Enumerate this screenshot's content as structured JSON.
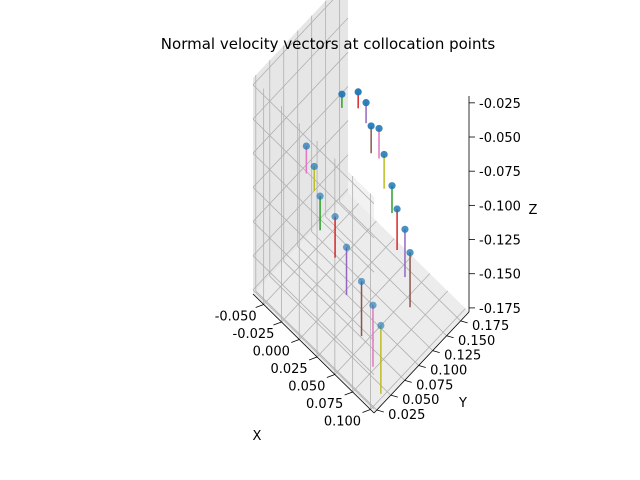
{
  "chart_data": {
    "type": "scatter",
    "title": "Normal velocity vectors at collocation points",
    "xlabel": "X",
    "ylabel": "Y",
    "zlabel": "Z",
    "xlim": [
      -0.065,
      0.105
    ],
    "ylim": [
      0.02,
      0.19
    ],
    "zlim": [
      -0.178,
      -0.02
    ],
    "x_ticks": [
      "-0.050",
      "-0.025",
      "0.000",
      "0.025",
      "0.050",
      "0.075",
      "0.100"
    ],
    "y_ticks": [
      "0.025",
      "0.050",
      "0.075",
      "0.100",
      "0.125",
      "0.150",
      "0.175"
    ],
    "z_ticks": [
      "-0.025",
      "-0.050",
      "-0.075",
      "-0.100",
      "-0.125",
      "-0.150",
      "-0.175"
    ],
    "grid": true,
    "marker_color": "#1f77b4",
    "collocation_points": {
      "x": [
        -0.05,
        -0.035,
        -0.02,
        -0.005,
        0.01,
        0.025,
        0.04,
        0.055,
        0.07,
        0.085,
        -0.045,
        -0.03,
        -0.01,
        0.015,
        0.035,
        0.06,
        0.08,
        0.095
      ],
      "y": [
        0.16,
        0.17,
        0.165,
        0.155,
        0.15,
        0.14,
        0.135,
        0.125,
        0.12,
        0.11,
        0.09,
        0.085,
        0.07,
        0.065,
        0.06,
        0.055,
        0.05,
        0.045
      ],
      "z": [
        -0.085,
        -0.08,
        -0.078,
        -0.083,
        -0.075,
        -0.082,
        -0.095,
        -0.1,
        -0.105,
        -0.11,
        -0.09,
        -0.095,
        -0.1,
        -0.1,
        -0.11,
        -0.12,
        -0.125,
        -0.13
      ]
    },
    "vectors": {
      "colors": [
        "#2ca02c",
        "#d62728",
        "#9467bd",
        "#8c564b",
        "#e377c2",
        "#bcbd22"
      ],
      "dz": [
        -0.01,
        -0.012,
        -0.015,
        -0.02,
        -0.022,
        -0.025,
        -0.02,
        -0.03,
        -0.035,
        -0.04,
        -0.02,
        -0.018,
        -0.025,
        -0.03,
        -0.035,
        -0.04,
        -0.045,
        -0.05
      ]
    }
  }
}
